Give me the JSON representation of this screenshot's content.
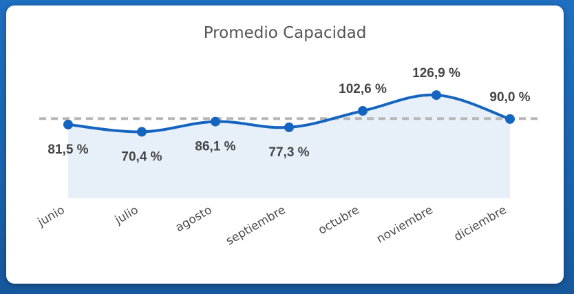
{
  "chart_data": {
    "type": "area",
    "title": "Promedio Capacidad",
    "categories": [
      "junio",
      "julio",
      "agosto",
      "septiembre",
      "octubre",
      "noviembre",
      "diciembre"
    ],
    "series": [
      {
        "values": [
          81.5,
          70.4,
          86.1,
          77.3,
          102.6,
          126.9,
          90.0
        ],
        "labels": [
          "81,5 %",
          "70,4 %",
          "86,1 %",
          "77,3 %",
          "102,6 %",
          "126,9 %",
          "90,0 %"
        ]
      }
    ],
    "reference_line": {
      "value": 90.7,
      "style": "dashed"
    },
    "ylim": [
      -32,
      180
    ],
    "grid": false,
    "legend": "none",
    "colors": {
      "line": "#1565c0",
      "fill": "#e7eff8",
      "reference": "#b8b8b8",
      "labels": "#444444",
      "title": "#555555",
      "background": "#1f6fc0"
    }
  }
}
